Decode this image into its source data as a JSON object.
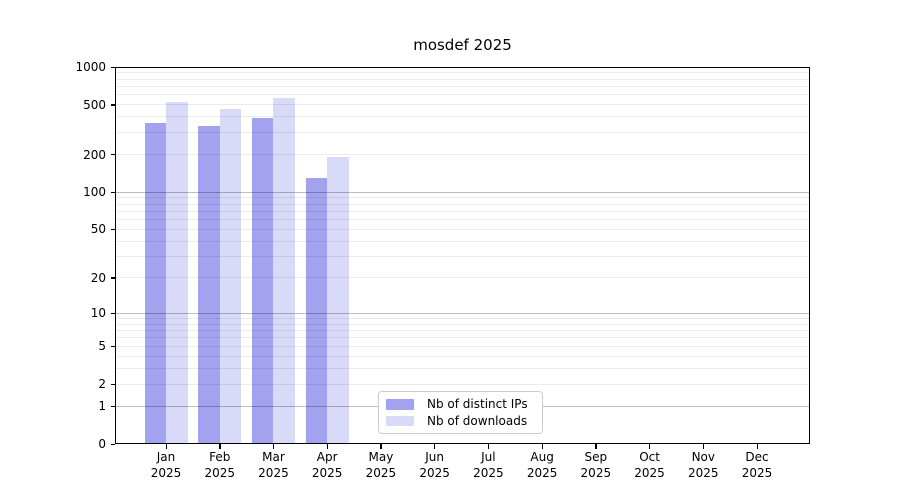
{
  "figure": {
    "background": "#ffffff"
  },
  "chart_data": {
    "type": "bar",
    "title": "mosdef 2025",
    "x": {
      "months": [
        "Jan",
        "Feb",
        "Mar",
        "Apr",
        "May",
        "Jun",
        "Jul",
        "Aug",
        "Sep",
        "Oct",
        "Nov",
        "Dec"
      ],
      "year": "2025"
    },
    "series": [
      {
        "name": "Nb of distinct IPs",
        "color": "#a2a2ef",
        "values": [
          360,
          340,
          395,
          130,
          0,
          0,
          0,
          0,
          0,
          0,
          0,
          0
        ]
      },
      {
        "name": "Nb of downloads",
        "color": "#d9d9f8",
        "values": [
          530,
          460,
          570,
          190,
          0,
          0,
          0,
          0,
          0,
          0,
          0,
          0
        ]
      }
    ],
    "yscale": "log1p",
    "ylim": [
      0,
      1000
    ],
    "yticks": [
      1000,
      500,
      200,
      100,
      50,
      20,
      10,
      5,
      2,
      1,
      0
    ],
    "grid": {
      "major_values": [
        1,
        10,
        100,
        1000
      ],
      "minor_values": [
        2,
        3,
        4,
        5,
        6,
        7,
        8,
        9,
        20,
        30,
        40,
        50,
        60,
        70,
        80,
        90,
        200,
        300,
        400,
        500,
        600,
        700,
        800,
        900
      ]
    },
    "legend": {
      "position": "lower center",
      "entries": [
        "Nb of distinct IPs",
        "Nb of downloads"
      ]
    }
  },
  "colors": {
    "grid_minor": "rgba(0,0,0,0.08)",
    "grid_major": "rgba(0,0,0,0.26)",
    "spine": "#000000",
    "text": "#000000",
    "legend_border": "#cccccc"
  }
}
